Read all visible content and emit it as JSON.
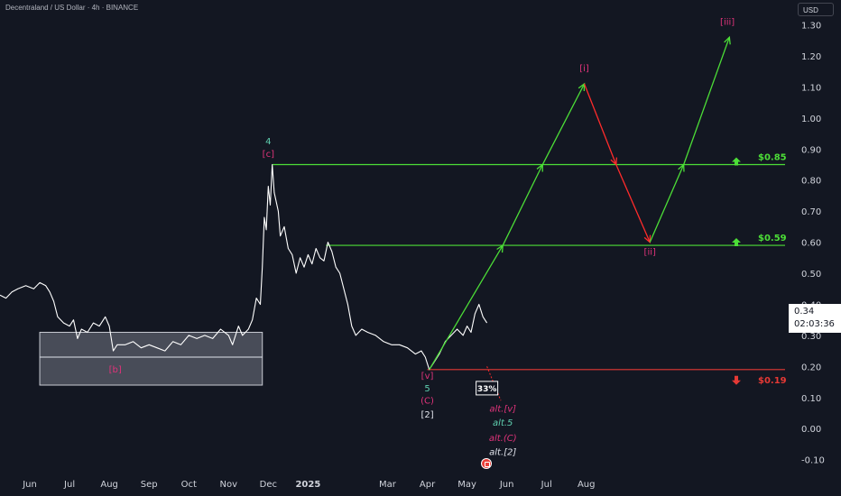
{
  "header": {
    "symbol_line": "Decentraland / US Dollar · 4h · BINANCE"
  },
  "currency_button": "USD",
  "last_price": {
    "value": "0.34",
    "countdown": "02:03:36"
  },
  "chart_data": {
    "type": "line",
    "title": "",
    "xlabel": "",
    "ylabel": "",
    "ylim": [
      -0.13,
      1.38
    ],
    "y_ticks": [
      "1.30",
      "1.20",
      "1.10",
      "1.00",
      "0.90",
      "0.80",
      "0.70",
      "0.60",
      "0.50",
      "0.40",
      "0.30",
      "0.20",
      "0.10",
      "0.00",
      "-0.10"
    ],
    "x_ticks": [
      {
        "label": "Jun",
        "x": 0.0
      },
      {
        "label": "Jul",
        "x": 1.0
      },
      {
        "label": "Aug",
        "x": 2.0
      },
      {
        "label": "Sep",
        "x": 3.0
      },
      {
        "label": "Oct",
        "x": 4.0
      },
      {
        "label": "Nov",
        "x": 5.0
      },
      {
        "label": "Dec",
        "x": 6.0
      },
      {
        "label": "2025",
        "x": 7.0
      },
      {
        "label": "Mar",
        "x": 9.0
      },
      {
        "label": "Apr",
        "x": 10.0
      },
      {
        "label": "May",
        "x": 11.0
      },
      {
        "label": "Jun",
        "x": 12.0
      },
      {
        "label": "Jul",
        "x": 13.0
      },
      {
        "label": "Aug",
        "x": 14.0
      }
    ],
    "x_range": [
      -0.75,
      19.0
    ],
    "grid": false,
    "colors": {
      "price": "#ffffff",
      "projection_up": "#4cde37",
      "projection_down": "#ff2b2b",
      "level_line": "#4cde37",
      "support_line": "#e53935",
      "wave_magenta": "#e0337a",
      "wave_teal": "#5fd0b0",
      "zone_fill": "#8a8f9c"
    },
    "price_series": [
      [
        -0.75,
        0.43
      ],
      [
        -0.6,
        0.42
      ],
      [
        -0.45,
        0.44
      ],
      [
        -0.3,
        0.45
      ],
      [
        -0.1,
        0.46
      ],
      [
        0.1,
        0.45
      ],
      [
        0.25,
        0.47
      ],
      [
        0.4,
        0.46
      ],
      [
        0.5,
        0.44
      ],
      [
        0.6,
        0.41
      ],
      [
        0.7,
        0.36
      ],
      [
        0.85,
        0.34
      ],
      [
        1.0,
        0.33
      ],
      [
        1.1,
        0.35
      ],
      [
        1.2,
        0.29
      ],
      [
        1.3,
        0.32
      ],
      [
        1.45,
        0.31
      ],
      [
        1.6,
        0.34
      ],
      [
        1.75,
        0.33
      ],
      [
        1.9,
        0.36
      ],
      [
        2.0,
        0.33
      ],
      [
        2.1,
        0.25
      ],
      [
        2.2,
        0.27
      ],
      [
        2.4,
        0.27
      ],
      [
        2.6,
        0.28
      ],
      [
        2.8,
        0.26
      ],
      [
        3.0,
        0.27
      ],
      [
        3.2,
        0.26
      ],
      [
        3.4,
        0.25
      ],
      [
        3.6,
        0.28
      ],
      [
        3.8,
        0.27
      ],
      [
        4.0,
        0.3
      ],
      [
        4.2,
        0.29
      ],
      [
        4.4,
        0.3
      ],
      [
        4.6,
        0.29
      ],
      [
        4.8,
        0.32
      ],
      [
        5.0,
        0.3
      ],
      [
        5.1,
        0.27
      ],
      [
        5.25,
        0.33
      ],
      [
        5.35,
        0.3
      ],
      [
        5.5,
        0.32
      ],
      [
        5.6,
        0.35
      ],
      [
        5.7,
        0.42
      ],
      [
        5.8,
        0.4
      ],
      [
        5.85,
        0.52
      ],
      [
        5.9,
        0.68
      ],
      [
        5.95,
        0.64
      ],
      [
        6.0,
        0.78
      ],
      [
        6.05,
        0.72
      ],
      [
        6.1,
        0.85
      ],
      [
        6.15,
        0.76
      ],
      [
        6.25,
        0.7
      ],
      [
        6.3,
        0.62
      ],
      [
        6.4,
        0.65
      ],
      [
        6.5,
        0.58
      ],
      [
        6.6,
        0.56
      ],
      [
        6.7,
        0.5
      ],
      [
        6.8,
        0.55
      ],
      [
        6.9,
        0.52
      ],
      [
        7.0,
        0.56
      ],
      [
        7.1,
        0.53
      ],
      [
        7.2,
        0.58
      ],
      [
        7.3,
        0.55
      ],
      [
        7.4,
        0.54
      ],
      [
        7.5,
        0.6
      ],
      [
        7.6,
        0.57
      ],
      [
        7.7,
        0.52
      ],
      [
        7.8,
        0.5
      ],
      [
        7.9,
        0.45
      ],
      [
        8.0,
        0.4
      ],
      [
        8.1,
        0.33
      ],
      [
        8.2,
        0.3
      ],
      [
        8.35,
        0.32
      ],
      [
        8.5,
        0.31
      ],
      [
        8.7,
        0.3
      ],
      [
        8.9,
        0.28
      ],
      [
        9.1,
        0.27
      ],
      [
        9.3,
        0.27
      ],
      [
        9.5,
        0.26
      ],
      [
        9.7,
        0.24
      ],
      [
        9.85,
        0.25
      ],
      [
        9.95,
        0.23
      ],
      [
        10.05,
        0.19
      ],
      [
        10.15,
        0.21
      ],
      [
        10.3,
        0.24
      ],
      [
        10.45,
        0.28
      ],
      [
        10.6,
        0.3
      ],
      [
        10.75,
        0.32
      ],
      [
        10.9,
        0.3
      ],
      [
        11.0,
        0.33
      ],
      [
        11.1,
        0.31
      ],
      [
        11.2,
        0.37
      ],
      [
        11.3,
        0.4
      ],
      [
        11.4,
        0.36
      ],
      [
        11.5,
        0.34
      ]
    ],
    "range_box": {
      "x0": 0.25,
      "x1": 5.85,
      "y_top": 0.31,
      "y_mid": 0.23,
      "y_bottom": 0.14
    },
    "levels": [
      {
        "value": 0.85,
        "label": "$0.85",
        "x0": 6.1,
        "direction": "up"
      },
      {
        "value": 0.59,
        "label": "$0.59",
        "x0": 7.45,
        "direction": "up"
      },
      {
        "value": 0.19,
        "label": "$0.19",
        "x0": 10.0,
        "direction": "down"
      }
    ],
    "projection_path": [
      [
        10.05,
        0.19
      ],
      [
        11.9,
        0.59
      ],
      [
        12.9,
        0.85
      ],
      [
        13.95,
        1.11
      ],
      [
        14.75,
        0.85
      ],
      [
        15.6,
        0.6
      ],
      [
        16.45,
        0.85
      ],
      [
        17.6,
        1.26
      ]
    ],
    "alt_path": [
      [
        11.5,
        0.2
      ],
      [
        11.85,
        0.09
      ]
    ],
    "wave_labels": [
      {
        "text": "4",
        "x": 6.0,
        "y": 0.915,
        "color": "teal"
      },
      {
        "text": "[c]",
        "x": 6.0,
        "y": 0.875,
        "color": "magenta"
      },
      {
        "text": "[b]",
        "x": 2.15,
        "y": 0.18,
        "color": "magenta"
      },
      {
        "text": "[v]",
        "x": 10.0,
        "y": 0.16,
        "color": "magenta"
      },
      {
        "text": "5",
        "x": 10.0,
        "y": 0.12,
        "color": "teal"
      },
      {
        "text": "(C)",
        "x": 10.0,
        "y": 0.08,
        "color": "magenta"
      },
      {
        "text": "[2]",
        "x": 10.0,
        "y": 0.035,
        "color": "white"
      },
      {
        "text": "[i]",
        "x": 13.95,
        "y": 1.15,
        "color": "magenta"
      },
      {
        "text": "[ii]",
        "x": 15.6,
        "y": 0.56,
        "color": "magenta"
      },
      {
        "text": "[iii]",
        "x": 17.55,
        "y": 1.3,
        "color": "magenta"
      },
      {
        "text": "alt.[v]",
        "x": 11.9,
        "y": 0.055,
        "color": "magenta",
        "italic": true
      },
      {
        "text": "alt.5",
        "x": 11.9,
        "y": 0.01,
        "color": "teal",
        "italic": true
      },
      {
        "text": "alt.(C)",
        "x": 11.9,
        "y": -0.04,
        "color": "magenta",
        "italic": true
      },
      {
        "text": "alt.[2]",
        "x": 11.9,
        "y": -0.085,
        "color": "white",
        "italic": true
      }
    ],
    "probability_badge": {
      "text": "33%",
      "x": 11.5,
      "y": 0.12
    }
  }
}
